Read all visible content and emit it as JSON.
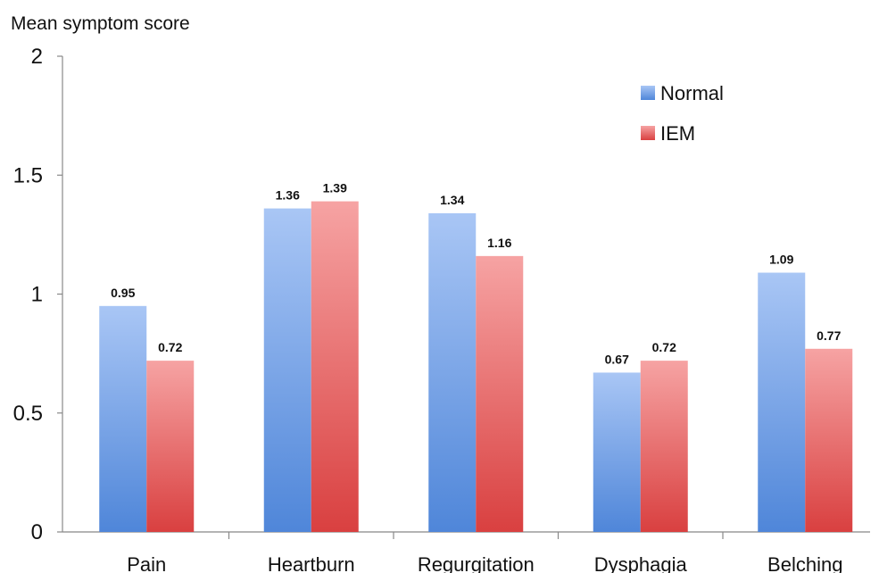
{
  "chart_data": {
    "type": "bar",
    "ylabel": "Mean symptom score",
    "xlabel": "",
    "ylim": [
      0,
      2
    ],
    "yticks": [
      "0",
      "0.5",
      "1",
      "1.5",
      "2"
    ],
    "categories": [
      "Pain",
      "Heartburn",
      "Regurgitation",
      "Dysphagia",
      "Belching"
    ],
    "series": [
      {
        "name": "Normal",
        "values": [
          0.95,
          1.36,
          1.34,
          0.67,
          1.09
        ],
        "labels": [
          "0.95",
          "1.36",
          "1.34",
          "0.67",
          "1.09"
        ],
        "color_top": "#a9c6f5",
        "color_bottom": "#4f86d9"
      },
      {
        "name": "IEM",
        "values": [
          0.72,
          1.39,
          1.16,
          0.72,
          0.77
        ],
        "labels": [
          "0.72",
          "1.39",
          "1.16",
          "0.72",
          "0.77"
        ],
        "color_top": "#f6a3a3",
        "color_bottom": "#d94040"
      }
    ],
    "legend_position": "top-right",
    "grid": false
  }
}
